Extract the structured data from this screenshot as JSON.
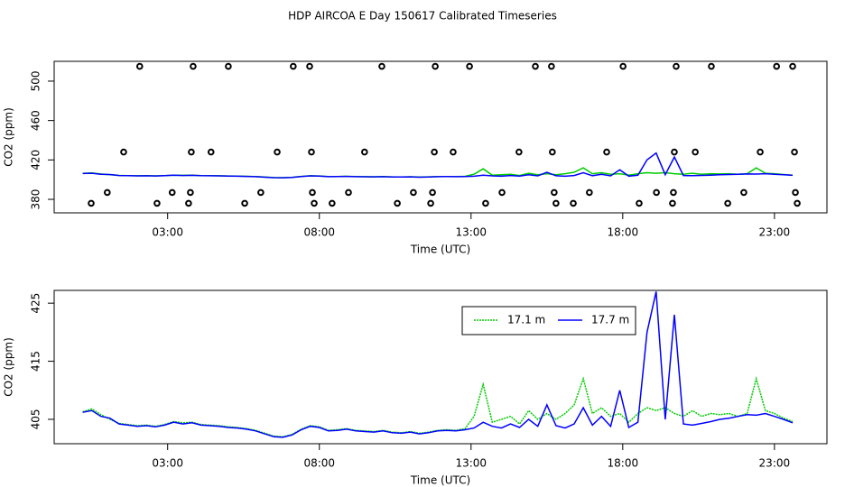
{
  "chart_data": [
    {
      "type": "line",
      "title": "HDP AIRCOA E  Day 150617  Calibrated Timeseries",
      "xlabel": "Time (UTC)",
      "ylabel": "CO2 (ppm)",
      "xlim": [
        -0.74,
        24.73
      ],
      "ylim": [
        366.3,
        520.1
      ],
      "xticks": [
        {
          "value": 3,
          "label": "03:00"
        },
        {
          "value": 8,
          "label": "08:00"
        },
        {
          "value": 13,
          "label": "13:00"
        },
        {
          "value": 18,
          "label": "18:00"
        },
        {
          "value": 23,
          "label": "23:00"
        }
      ],
      "yticks": [
        380,
        420,
        460,
        500
      ],
      "points": {
        "color": "#000000",
        "x": [
          2.08,
          3.84,
          5.0,
          7.14,
          7.68,
          10.06,
          11.82,
          12.95,
          15.12,
          15.65,
          18.01,
          19.76,
          20.92,
          23.07,
          23.6,
          1.55,
          3.78,
          4.43,
          6.61,
          7.74,
          9.49,
          11.79,
          12.41,
          14.58,
          15.68,
          17.47,
          19.7,
          20.39,
          22.53,
          23.66,
          1.01,
          3.15,
          3.75,
          6.07,
          7.77,
          8.96,
          11.1,
          11.73,
          14.02,
          15.74,
          16.9,
          19.11,
          19.67,
          21.99,
          23.69,
          0.48,
          2.65,
          3.69,
          5.54,
          7.83,
          8.42,
          10.57,
          11.67,
          13.48,
          15.8,
          16.37,
          18.54,
          19.64,
          21.46,
          23.75
        ],
        "values": [
          515,
          515,
          515,
          515,
          515,
          515,
          515,
          515,
          515,
          515,
          515,
          515,
          515,
          515,
          515,
          428,
          428,
          428,
          428,
          428,
          428,
          428,
          428,
          428,
          428,
          428,
          428,
          428,
          428,
          428,
          387,
          387,
          387,
          387,
          387,
          387,
          387,
          387,
          387,
          387,
          387,
          387,
          387,
          387,
          387,
          376,
          376,
          376,
          376,
          376,
          376,
          376,
          376,
          376,
          376,
          376,
          376,
          376,
          376,
          376
        ]
      },
      "x": [
        0.2,
        0.5,
        0.8,
        1.1,
        1.4,
        1.7,
        2.0,
        2.3,
        2.6,
        2.9,
        3.2,
        3.5,
        3.8,
        4.1,
        4.4,
        4.7,
        5.0,
        5.3,
        5.6,
        5.9,
        6.2,
        6.5,
        6.8,
        7.1,
        7.4,
        7.7,
        8.0,
        8.3,
        8.6,
        8.9,
        9.2,
        9.5,
        9.8,
        10.1,
        10.4,
        10.7,
        11.0,
        11.3,
        11.6,
        11.9,
        12.2,
        12.5,
        12.8,
        13.1,
        13.4,
        13.7,
        14.0,
        14.3,
        14.6,
        14.9,
        15.2,
        15.5,
        15.8,
        16.1,
        16.4,
        16.7,
        17.0,
        17.3,
        17.6,
        17.9,
        18.2,
        18.5,
        18.8,
        19.1,
        19.4,
        19.7,
        20.0,
        20.3,
        20.6,
        20.9,
        21.2,
        21.5,
        21.8,
        22.1,
        22.4,
        22.7,
        23.0,
        23.3,
        23.6
      ],
      "series": [
        {
          "color": "#00cc00",
          "values": [
            406.3,
            406.8,
            405.8,
            405.0,
            404.3,
            404.1,
            403.9,
            404.0,
            403.8,
            404.1,
            404.6,
            404.4,
            404.5,
            404.1,
            404.0,
            403.9,
            403.7,
            403.6,
            403.4,
            403.1,
            402.6,
            402.1,
            402.0,
            402.4,
            403.3,
            403.9,
            403.7,
            403.1,
            403.2,
            403.4,
            403.1,
            403.0,
            402.9,
            403.1,
            402.8,
            402.7,
            402.9,
            402.6,
            402.8,
            403.1,
            403.2,
            403.1,
            403.4,
            405.5,
            411.0,
            404.5,
            405.0,
            405.5,
            404.2,
            406.5,
            405.0,
            406.0,
            405.0,
            406.0,
            407.5,
            412.0,
            406.0,
            407.0,
            405.5,
            406.0,
            404.5,
            406.0,
            407.0,
            406.5,
            407.0,
            406.0,
            405.5,
            406.5,
            405.5,
            406.0,
            405.8,
            406.0,
            405.5,
            406.0,
            412.0,
            406.5,
            406.0,
            405.2,
            404.6
          ]
        },
        {
          "color": "#0000ff",
          "values": [
            406.2,
            406.5,
            405.5,
            405.2,
            404.2,
            404.0,
            403.8,
            403.9,
            403.7,
            404.0,
            404.5,
            404.2,
            404.4,
            404.0,
            403.9,
            403.8,
            403.6,
            403.5,
            403.3,
            403.0,
            402.5,
            402.0,
            401.9,
            402.3,
            403.2,
            403.8,
            403.6,
            403.0,
            403.1,
            403.3,
            403.0,
            402.9,
            402.8,
            403.0,
            402.7,
            402.6,
            402.8,
            402.5,
            402.7,
            403.0,
            403.1,
            403.0,
            403.2,
            403.5,
            404.5,
            403.8,
            403.5,
            404.2,
            403.6,
            405.0,
            403.8,
            407.5,
            403.9,
            403.5,
            404.2,
            407.0,
            404.0,
            405.5,
            403.8,
            410.0,
            403.6,
            404.5,
            420.0,
            427.0,
            405.0,
            423.0,
            404.2,
            404.0,
            404.3,
            404.6,
            405.0,
            405.2,
            405.5,
            405.8,
            405.7,
            406.0,
            405.5,
            405.0,
            404.4
          ]
        }
      ]
    },
    {
      "type": "line",
      "xlabel": "Time (UTC)",
      "ylabel": "CO2 (ppm)",
      "xlim": [
        -0.74,
        24.73
      ],
      "ylim": [
        400.8,
        427.2
      ],
      "xticks": [
        {
          "value": 3,
          "label": "03:00"
        },
        {
          "value": 8,
          "label": "08:00"
        },
        {
          "value": 13,
          "label": "13:00"
        },
        {
          "value": 18,
          "label": "18:00"
        },
        {
          "value": 23,
          "label": "23:00"
        }
      ],
      "yticks": [
        405,
        415,
        425
      ],
      "legend": "top",
      "x": [
        0.2,
        0.5,
        0.8,
        1.1,
        1.4,
        1.7,
        2.0,
        2.3,
        2.6,
        2.9,
        3.2,
        3.5,
        3.8,
        4.1,
        4.4,
        4.7,
        5.0,
        5.3,
        5.6,
        5.9,
        6.2,
        6.5,
        6.8,
        7.1,
        7.4,
        7.7,
        8.0,
        8.3,
        8.6,
        8.9,
        9.2,
        9.5,
        9.8,
        10.1,
        10.4,
        10.7,
        11.0,
        11.3,
        11.6,
        11.9,
        12.2,
        12.5,
        12.8,
        13.1,
        13.4,
        13.7,
        14.0,
        14.3,
        14.6,
        14.9,
        15.2,
        15.5,
        15.8,
        16.1,
        16.4,
        16.7,
        17.0,
        17.3,
        17.6,
        17.9,
        18.2,
        18.5,
        18.8,
        19.1,
        19.4,
        19.7,
        20.0,
        20.3,
        20.6,
        20.9,
        21.2,
        21.5,
        21.8,
        22.1,
        22.4,
        22.7,
        23.0,
        23.3,
        23.6
      ],
      "series": [
        {
          "name": "17.1 m",
          "color": "#00cc00",
          "values": [
            406.3,
            406.8,
            405.8,
            405.0,
            404.3,
            404.1,
            403.9,
            404.0,
            403.8,
            404.1,
            404.6,
            404.4,
            404.5,
            404.1,
            404.0,
            403.9,
            403.7,
            403.6,
            403.4,
            403.1,
            402.6,
            402.1,
            402.0,
            402.4,
            403.3,
            403.9,
            403.7,
            403.1,
            403.2,
            403.4,
            403.1,
            403.0,
            402.9,
            403.1,
            402.8,
            402.7,
            402.9,
            402.6,
            402.8,
            403.1,
            403.2,
            403.1,
            403.4,
            405.5,
            411.0,
            404.5,
            405.0,
            405.5,
            404.2,
            406.5,
            405.0,
            406.0,
            405.0,
            406.0,
            407.5,
            412.0,
            406.0,
            407.0,
            405.5,
            406.0,
            404.5,
            406.0,
            407.0,
            406.5,
            407.0,
            406.0,
            405.5,
            406.5,
            405.5,
            406.0,
            405.8,
            406.0,
            405.5,
            406.0,
            412.0,
            406.5,
            406.0,
            405.2,
            404.6
          ]
        },
        {
          "name": "17.7 m",
          "color": "#0000ff",
          "values": [
            406.2,
            406.5,
            405.5,
            405.2,
            404.2,
            404.0,
            403.8,
            403.9,
            403.7,
            404.0,
            404.5,
            404.2,
            404.4,
            404.0,
            403.9,
            403.8,
            403.6,
            403.5,
            403.3,
            403.0,
            402.5,
            402.0,
            401.9,
            402.3,
            403.2,
            403.8,
            403.6,
            403.0,
            403.1,
            403.3,
            403.0,
            402.9,
            402.8,
            403.0,
            402.7,
            402.6,
            402.8,
            402.5,
            402.7,
            403.0,
            403.1,
            403.0,
            403.2,
            403.5,
            404.5,
            403.8,
            403.5,
            404.2,
            403.6,
            405.0,
            403.8,
            407.5,
            403.9,
            403.5,
            404.2,
            407.0,
            404.0,
            405.5,
            403.8,
            410.0,
            403.6,
            404.5,
            420.0,
            427.0,
            405.0,
            423.0,
            404.2,
            404.0,
            404.3,
            404.6,
            405.0,
            405.2,
            405.5,
            405.8,
            405.7,
            406.0,
            405.5,
            405.0,
            404.4
          ]
        }
      ]
    }
  ]
}
